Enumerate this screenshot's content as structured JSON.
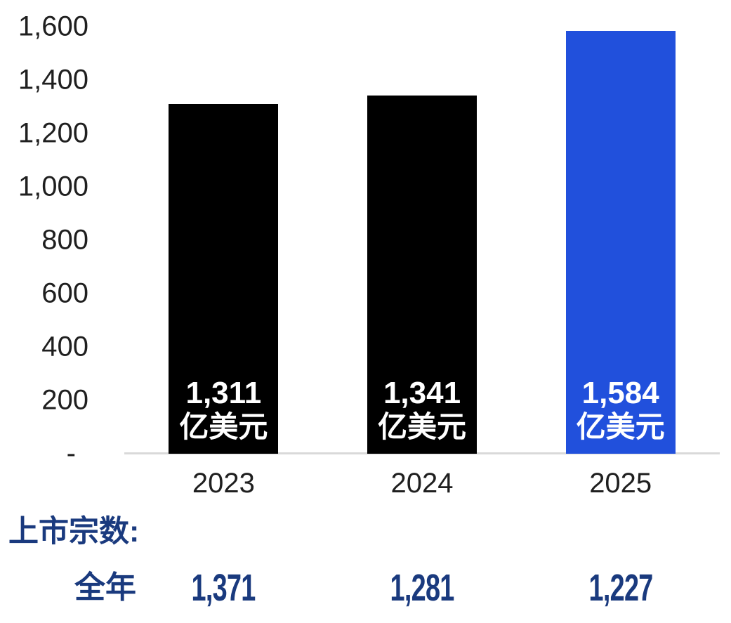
{
  "chart_data": {
    "type": "bar",
    "title": "",
    "categories": [
      "2023",
      "2024",
      "2025"
    ],
    "values": [
      1311,
      1341,
      1584
    ],
    "bar_value_labels": [
      "1,311",
      "1,341",
      "1,584"
    ],
    "unit_label": "亿美元",
    "bar_colors": [
      "#000000",
      "#000000",
      "#2150DC"
    ],
    "ylim": [
      0,
      1600
    ],
    "y_ticks": [
      {
        "value": 1600,
        "label": "1,600"
      },
      {
        "value": 1400,
        "label": "1,400"
      },
      {
        "value": 1200,
        "label": "1,200"
      },
      {
        "value": 1000,
        "label": "1,000"
      },
      {
        "value": 800,
        "label": "800"
      },
      {
        "value": 600,
        "label": "600"
      },
      {
        "value": 400,
        "label": "400"
      },
      {
        "value": 200,
        "label": "200"
      },
      {
        "value": 0,
        "label": "-"
      }
    ],
    "grid": false,
    "legend": false,
    "xlabel": "",
    "ylabel": ""
  },
  "footer": {
    "listings_heading": "上市宗数:",
    "rows": [
      {
        "label": "全年",
        "values": [
          "1,371",
          "1,281",
          "1,227"
        ]
      }
    ]
  },
  "colors": {
    "navy_text": "#1A3A7E",
    "bar_black": "#000000",
    "bar_blue": "#2150DC",
    "axis_line": "#D9D9D9",
    "axis_text": "#1F1F1F",
    "bar_label_text": "#FFFFFF",
    "background": "#FFFFFF"
  }
}
